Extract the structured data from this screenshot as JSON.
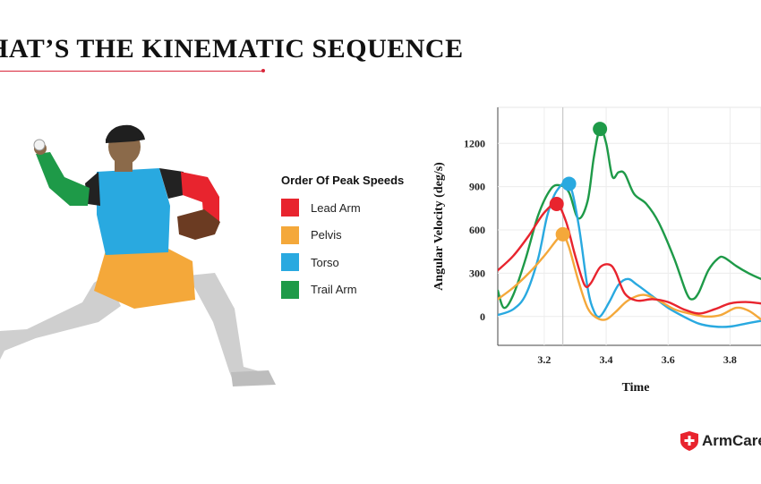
{
  "title": "HAT’S THE KINEMATIC SEQUENCE",
  "legend": {
    "title": "Order Of Peak Speeds",
    "items": [
      {
        "label": "Lead Arm",
        "color": "#e8242e"
      },
      {
        "label": "Pelvis",
        "color": "#f4a83a"
      },
      {
        "label": "Torso",
        "color": "#29a9e0"
      },
      {
        "label": "Trail Arm",
        "color": "#1e9a48"
      }
    ]
  },
  "logo": {
    "text": "ArmCare",
    "icon": "cross-shield-icon",
    "color": "#e8242e"
  },
  "pitcher": {
    "colors": {
      "skin": "#8b6a4a",
      "torso": "#29a9e0",
      "pelvis": "#f4a83a",
      "lead_arm": "#e8242e",
      "trail_arm": "#1e9a48",
      "pants": "#cfcfcf",
      "glove": "#6b3b22",
      "cap": "#1f1f1f"
    }
  },
  "chart_data": {
    "type": "line",
    "title": "",
    "xlabel": "Time",
    "ylabel": "Angular Velocity (deg/s)",
    "xlim": [
      3.05,
      3.9
    ],
    "ylim": [
      -200,
      1450
    ],
    "xticks": [
      "3.2",
      "3.4",
      "3.6",
      "3.8"
    ],
    "yticks": [
      "0",
      "300",
      "600",
      "900",
      "1200"
    ],
    "grid": true,
    "vline_x": 3.26,
    "series": [
      {
        "name": "Lead Arm",
        "color": "#e8242e",
        "points": [
          [
            3.05,
            320
          ],
          [
            3.1,
            420
          ],
          [
            3.15,
            560
          ],
          [
            3.2,
            720
          ],
          [
            3.24,
            780
          ],
          [
            3.27,
            660
          ],
          [
            3.3,
            420
          ],
          [
            3.33,
            220
          ],
          [
            3.35,
            230
          ],
          [
            3.38,
            340
          ],
          [
            3.41,
            360
          ],
          [
            3.43,
            310
          ],
          [
            3.46,
            160
          ],
          [
            3.5,
            110
          ],
          [
            3.55,
            120
          ],
          [
            3.6,
            100
          ],
          [
            3.65,
            50
          ],
          [
            3.7,
            20
          ],
          [
            3.75,
            50
          ],
          [
            3.8,
            90
          ],
          [
            3.85,
            100
          ],
          [
            3.9,
            90
          ]
        ],
        "peak": [
          3.24,
          780
        ]
      },
      {
        "name": "Pelvis",
        "color": "#f4a83a",
        "points": [
          [
            3.05,
            120
          ],
          [
            3.1,
            200
          ],
          [
            3.15,
            300
          ],
          [
            3.2,
            420
          ],
          [
            3.24,
            530
          ],
          [
            3.26,
            570
          ],
          [
            3.28,
            480
          ],
          [
            3.31,
            250
          ],
          [
            3.34,
            60
          ],
          [
            3.37,
            -10
          ],
          [
            3.4,
            -20
          ],
          [
            3.43,
            30
          ],
          [
            3.47,
            110
          ],
          [
            3.52,
            150
          ],
          [
            3.57,
            110
          ],
          [
            3.62,
            50
          ],
          [
            3.67,
            20
          ],
          [
            3.72,
            0
          ],
          [
            3.77,
            10
          ],
          [
            3.82,
            60
          ],
          [
            3.86,
            40
          ],
          [
            3.9,
            -20
          ]
        ],
        "peak": [
          3.26,
          570
        ]
      },
      {
        "name": "Torso",
        "color": "#29a9e0",
        "points": [
          [
            3.05,
            10
          ],
          [
            3.1,
            50
          ],
          [
            3.14,
            150
          ],
          [
            3.18,
            400
          ],
          [
            3.21,
            700
          ],
          [
            3.24,
            870
          ],
          [
            3.28,
            920
          ],
          [
            3.31,
            650
          ],
          [
            3.34,
            200
          ],
          [
            3.36,
            40
          ],
          [
            3.38,
            0
          ],
          [
            3.41,
            100
          ],
          [
            3.44,
            220
          ],
          [
            3.47,
            260
          ],
          [
            3.5,
            220
          ],
          [
            3.55,
            140
          ],
          [
            3.6,
            60
          ],
          [
            3.65,
            0
          ],
          [
            3.7,
            -50
          ],
          [
            3.75,
            -70
          ],
          [
            3.8,
            -70
          ],
          [
            3.85,
            -50
          ],
          [
            3.9,
            -30
          ]
        ],
        "peak": [
          3.28,
          920
        ]
      },
      {
        "name": "Trail Arm",
        "color": "#1e9a48",
        "points": [
          [
            3.05,
            180
          ],
          [
            3.07,
            60
          ],
          [
            3.1,
            150
          ],
          [
            3.14,
            400
          ],
          [
            3.18,
            700
          ],
          [
            3.22,
            880
          ],
          [
            3.25,
            910
          ],
          [
            3.28,
            860
          ],
          [
            3.31,
            680
          ],
          [
            3.34,
            800
          ],
          [
            3.36,
            1100
          ],
          [
            3.38,
            1300
          ],
          [
            3.4,
            1200
          ],
          [
            3.42,
            970
          ],
          [
            3.44,
            1000
          ],
          [
            3.46,
            990
          ],
          [
            3.49,
            850
          ],
          [
            3.53,
            780
          ],
          [
            3.57,
            650
          ],
          [
            3.62,
            400
          ],
          [
            3.66,
            160
          ],
          [
            3.68,
            120
          ],
          [
            3.7,
            170
          ],
          [
            3.73,
            320
          ],
          [
            3.76,
            400
          ],
          [
            3.78,
            410
          ],
          [
            3.82,
            350
          ],
          [
            3.86,
            300
          ],
          [
            3.9,
            260
          ]
        ],
        "peak": [
          3.38,
          1300
        ]
      }
    ]
  }
}
